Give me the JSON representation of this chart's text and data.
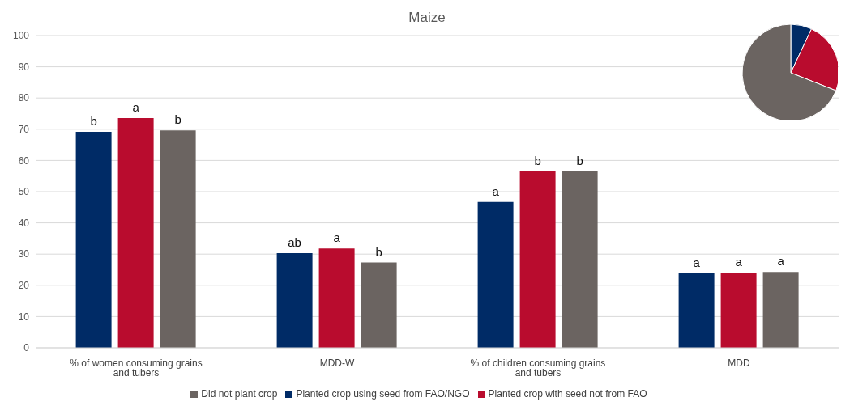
{
  "chart_data": [
    {
      "type": "bar",
      "title": "Maize",
      "categories": [
        "% of women consuming grains and tubers",
        "MDD-W",
        "% of children consuming grains and tubers",
        "MDD"
      ],
      "series": [
        {
          "name": "Planted crop using seed from FAO/NGO",
          "color": "#002b66",
          "values": [
            69.2,
            30.3,
            46.7,
            23.9
          ],
          "value_labels": [
            "b",
            "ab",
            "a",
            "a"
          ]
        },
        {
          "name": "Planted crop with seed not from FAO",
          "color": "#b90c2e",
          "values": [
            73.6,
            31.8,
            56.6,
            24.1
          ],
          "value_labels": [
            "a",
            "a",
            "b",
            "a"
          ]
        },
        {
          "name": "Did not plant crop",
          "color": "#6b6461",
          "values": [
            69.6,
            27.3,
            56.6,
            24.3
          ],
          "value_labels": [
            "b",
            "b",
            "b",
            "a"
          ]
        }
      ],
      "ylim": [
        0,
        100
      ],
      "yticks": [
        0,
        10,
        20,
        30,
        40,
        50,
        60,
        70,
        80,
        90,
        100
      ],
      "grid": "y",
      "legend": "bottom"
    },
    {
      "type": "pie",
      "categories": [
        null,
        null,
        null
      ],
      "values": [
        7,
        24,
        69
      ],
      "colors": [
        "#002b66",
        "#b90c2e",
        "#6b6461"
      ]
    }
  ]
}
